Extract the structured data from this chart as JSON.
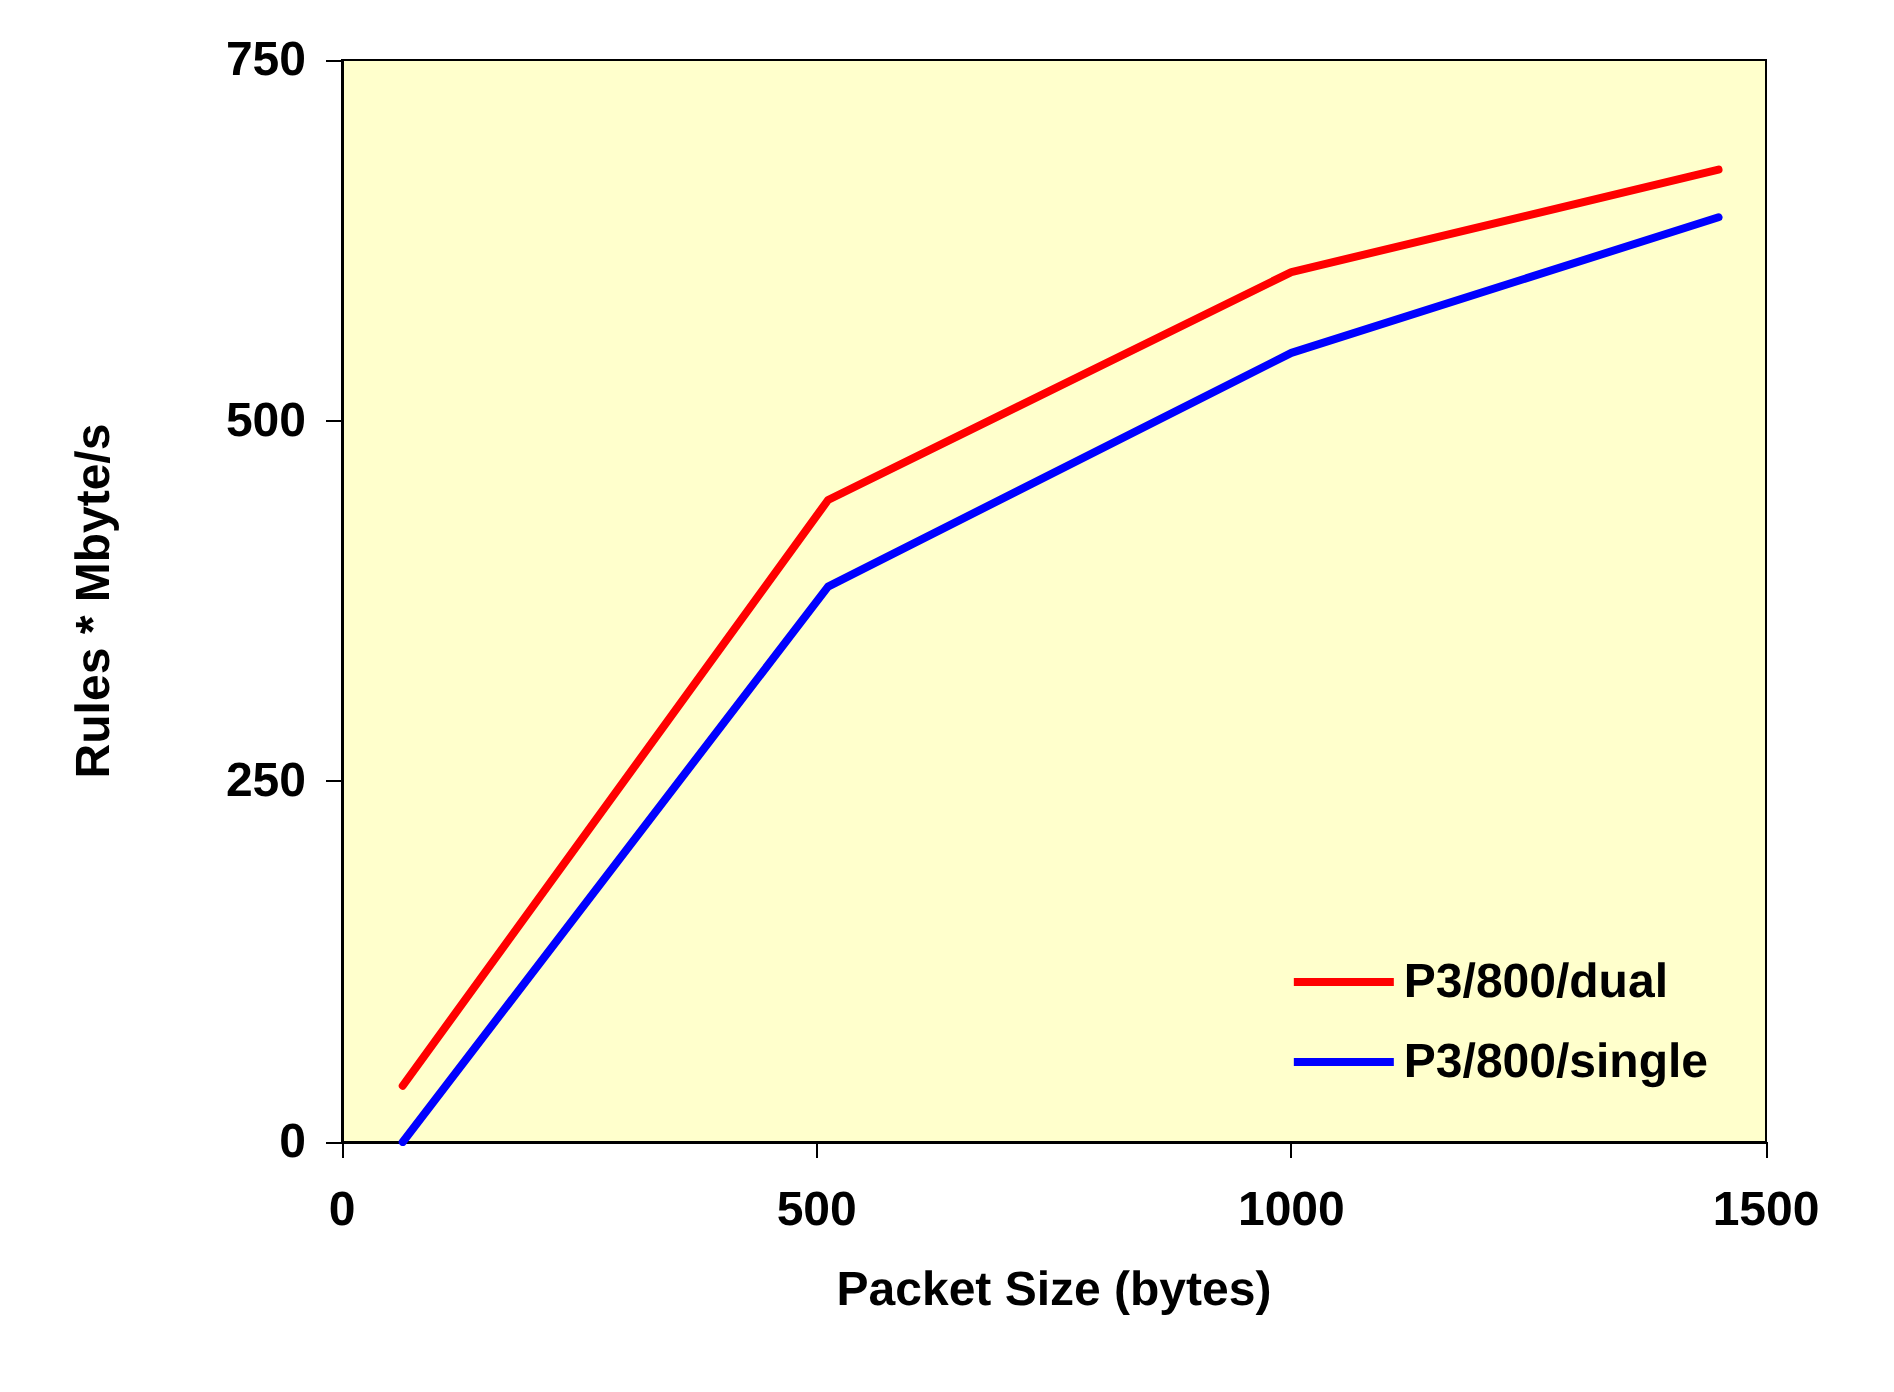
{
  "chart_data": {
    "type": "line",
    "xlabel": "Packet Size (bytes)",
    "ylabel": "Rules * Mbyte/s",
    "x": [
      64,
      512,
      1000,
      1450
    ],
    "series": [
      {
        "name": "P3/800/dual",
        "color": "#ff0000",
        "values": [
          39,
          445,
          603,
          674
        ]
      },
      {
        "name": "P3/800/single",
        "color": "#0000ff",
        "values": [
          0,
          385,
          547,
          641
        ]
      }
    ],
    "xlim": [
      0,
      1500
    ],
    "xticks": [
      0,
      500,
      1000,
      1500
    ],
    "ylim": [
      0,
      750
    ],
    "yticks": [
      0,
      250,
      500,
      750
    ],
    "grid": false,
    "legend": "bottom right",
    "marker": "none",
    "line_style": "solid"
  }
}
